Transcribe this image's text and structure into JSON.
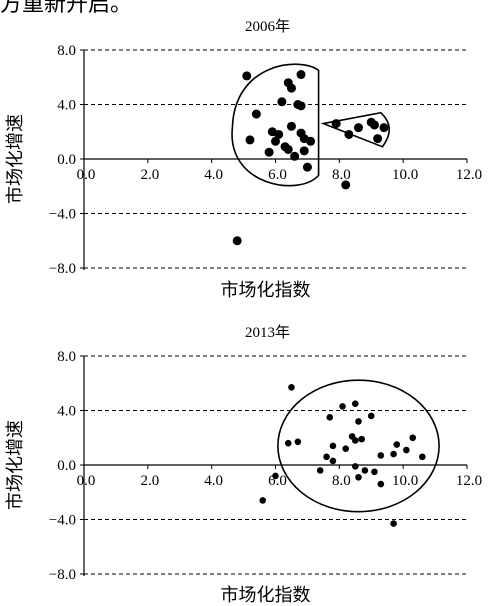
{
  "top_text": "方重新开启。",
  "chart_data": [
    {
      "type": "scatter",
      "title": "2006年",
      "xlabel": "市场化指数",
      "ylabel": "市场化增速",
      "xlim": [
        0,
        12
      ],
      "ylim": [
        -8,
        8
      ],
      "x_ticks": [
        "0.0",
        "2.0",
        "4.0",
        "6.0",
        "8.0",
        "10.0",
        "12.0"
      ],
      "y_ticks": [
        "8.0",
        "4.0",
        "0.0",
        "-4.0",
        "-8.0"
      ],
      "grid": "dashed-horizontal",
      "points": [
        [
          5.1,
          6.1
        ],
        [
          6.8,
          6.2
        ],
        [
          6.4,
          5.6
        ],
        [
          6.5,
          5.2
        ],
        [
          6.2,
          4.2
        ],
        [
          6.7,
          4.0
        ],
        [
          6.8,
          3.9
        ],
        [
          5.4,
          3.3
        ],
        [
          5.9,
          2.0
        ],
        [
          6.1,
          1.8
        ],
        [
          6.5,
          2.4
        ],
        [
          6.8,
          1.9
        ],
        [
          6.9,
          1.5
        ],
        [
          6.0,
          1.3
        ],
        [
          6.3,
          0.9
        ],
        [
          6.4,
          0.7
        ],
        [
          6.9,
          0.6
        ],
        [
          5.8,
          0.5
        ],
        [
          6.6,
          0.2
        ],
        [
          7.0,
          -0.6
        ],
        [
          7.1,
          1.3
        ],
        [
          5.2,
          1.4
        ],
        [
          7.9,
          2.6
        ],
        [
          8.6,
          2.3
        ],
        [
          9.0,
          2.7
        ],
        [
          9.1,
          2.5
        ],
        [
          9.4,
          2.3
        ],
        [
          9.2,
          1.5
        ],
        [
          8.3,
          1.8
        ],
        [
          8.2,
          -1.9
        ],
        [
          4.8,
          -6.0
        ]
      ],
      "annotations": [
        "ellipse-wedge-group",
        "wedge-group"
      ]
    },
    {
      "type": "scatter",
      "title": "2013年",
      "xlabel": "市场化指数",
      "ylabel": "市场化增速",
      "xlim": [
        0,
        12
      ],
      "ylim": [
        -8,
        8
      ],
      "x_ticks": [
        "0.0",
        "2.0",
        "4.0",
        "6.0",
        "8.0",
        "10.0",
        "12.0"
      ],
      "y_ticks": [
        "8.0",
        "4.0",
        "0.0",
        "-4.0",
        "-8.0"
      ],
      "grid": "dashed-horizontal",
      "points": [
        [
          6.5,
          5.7
        ],
        [
          8.5,
          4.5
        ],
        [
          8.1,
          4.3
        ],
        [
          9.0,
          3.6
        ],
        [
          7.7,
          3.5
        ],
        [
          8.6,
          3.2
        ],
        [
          8.4,
          2.1
        ],
        [
          8.5,
          1.8
        ],
        [
          8.7,
          1.9
        ],
        [
          10.3,
          2.0
        ],
        [
          6.4,
          1.6
        ],
        [
          6.7,
          1.7
        ],
        [
          7.8,
          1.4
        ],
        [
          9.8,
          1.5
        ],
        [
          8.2,
          1.2
        ],
        [
          9.3,
          0.7
        ],
        [
          9.7,
          0.8
        ],
        [
          10.1,
          1.1
        ],
        [
          10.6,
          0.6
        ],
        [
          7.6,
          0.6
        ],
        [
          7.8,
          0.3
        ],
        [
          8.5,
          -0.1
        ],
        [
          8.8,
          -0.4
        ],
        [
          7.4,
          -0.4
        ],
        [
          9.1,
          -0.5
        ],
        [
          8.6,
          -0.9
        ],
        [
          9.3,
          -1.4
        ],
        [
          6.0,
          -0.8
        ],
        [
          5.6,
          -2.6
        ],
        [
          9.7,
          -4.3
        ]
      ],
      "annotations": [
        "ellipse-group"
      ]
    }
  ]
}
